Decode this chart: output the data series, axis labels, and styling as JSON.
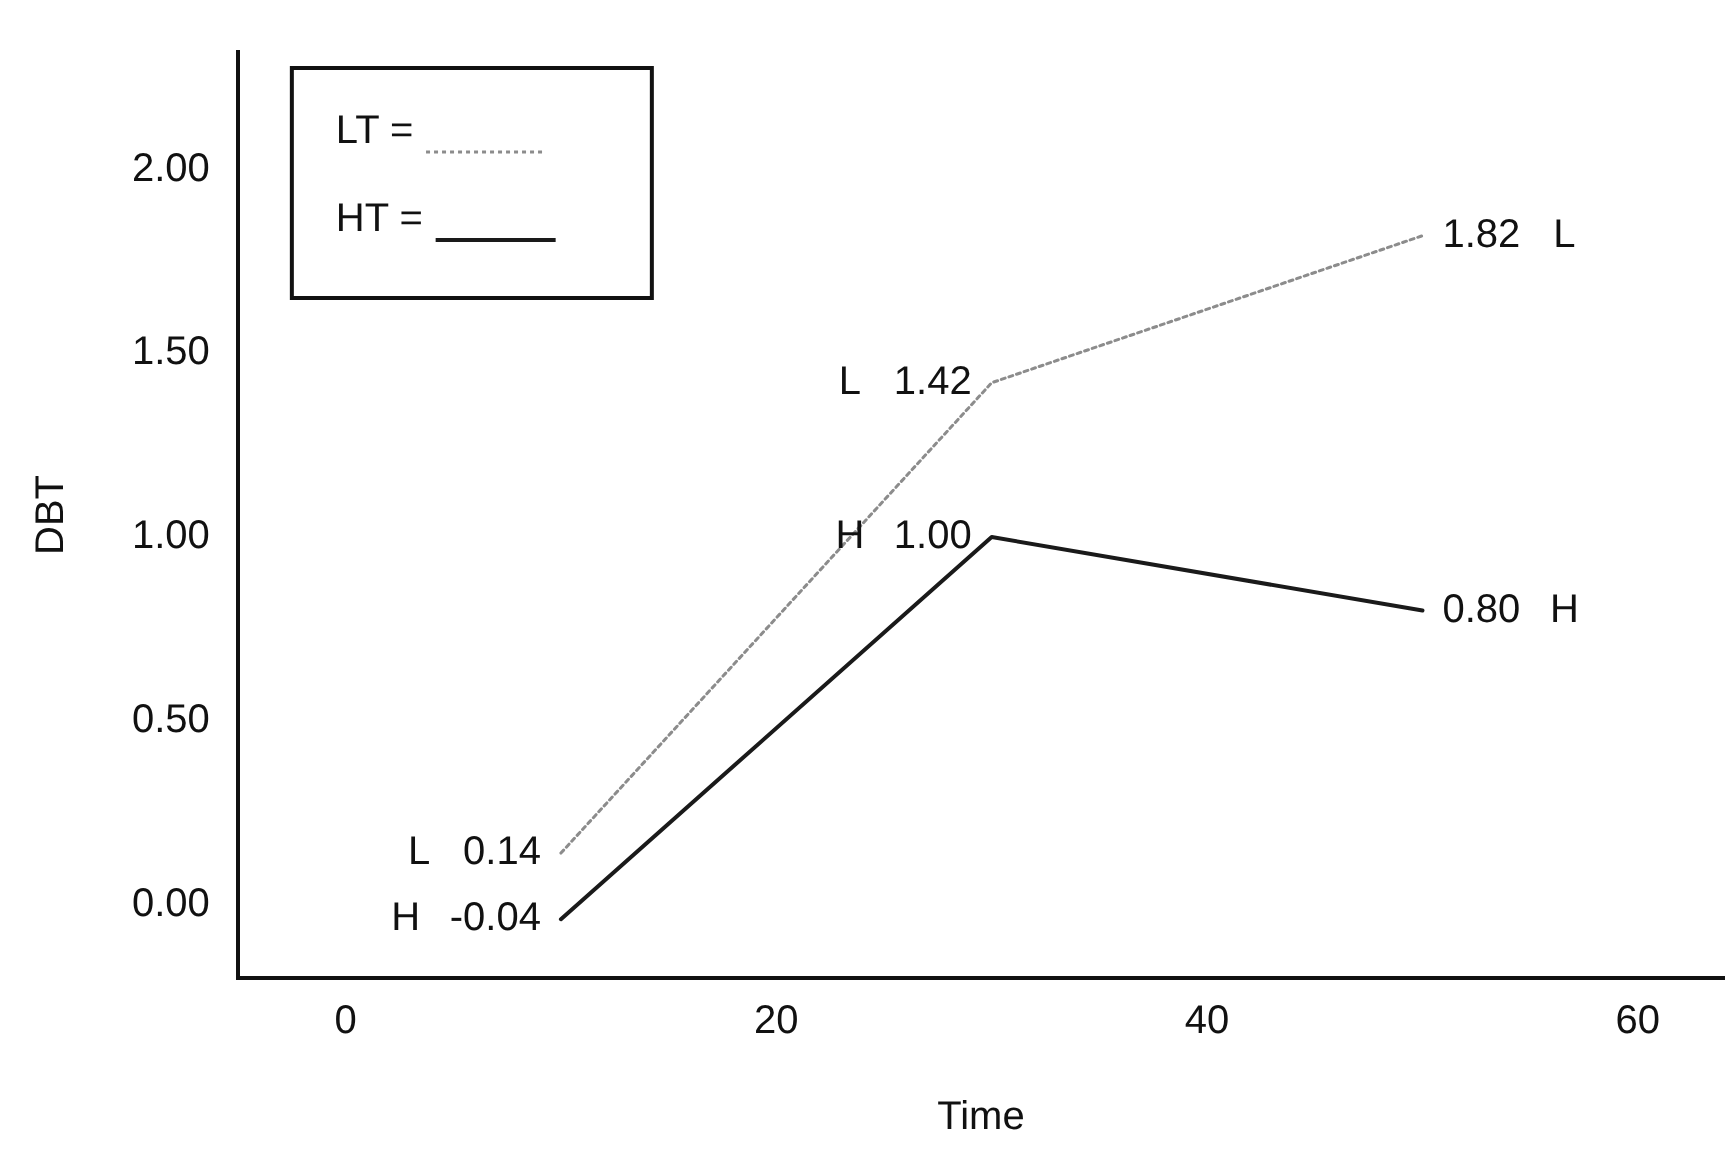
{
  "chart_data": {
    "type": "line",
    "xlabel": "Time",
    "ylabel": "DBT",
    "xlim": [
      -5,
      64
    ],
    "xticks": [
      0,
      20,
      40,
      60
    ],
    "ylim": [
      -0.2,
      2.32
    ],
    "yticks": [
      {
        "value": 0,
        "label": "0.00"
      },
      {
        "value": 0.5,
        "label": "0.50"
      },
      {
        "value": 1,
        "label": "1.00"
      },
      {
        "value": 1.5,
        "label": "1.50"
      },
      {
        "value": 2,
        "label": "2.00"
      }
    ],
    "series": [
      {
        "name": "LT =",
        "color": "#8c8c8c",
        "line_style": "dotted",
        "x": [
          10,
          30,
          50
        ],
        "values": [
          0.14,
          1.42,
          1.82
        ],
        "value_labels": [
          "0.14",
          "1.42",
          "1.82"
        ]
      },
      {
        "name": "HT =",
        "color": "#1a1a1a",
        "line_style": "solid",
        "x": [
          10,
          30,
          50
        ],
        "values": [
          -0.04,
          1.0,
          0.8
        ],
        "value_labels": [
          "-0.04",
          "1.00",
          "0.80"
        ]
      }
    ],
    "grid": false,
    "legend": "top left",
    "marker": "none",
    "annotations": [
      "L",
      "H",
      "L",
      "H",
      "L",
      "H"
    ]
  }
}
